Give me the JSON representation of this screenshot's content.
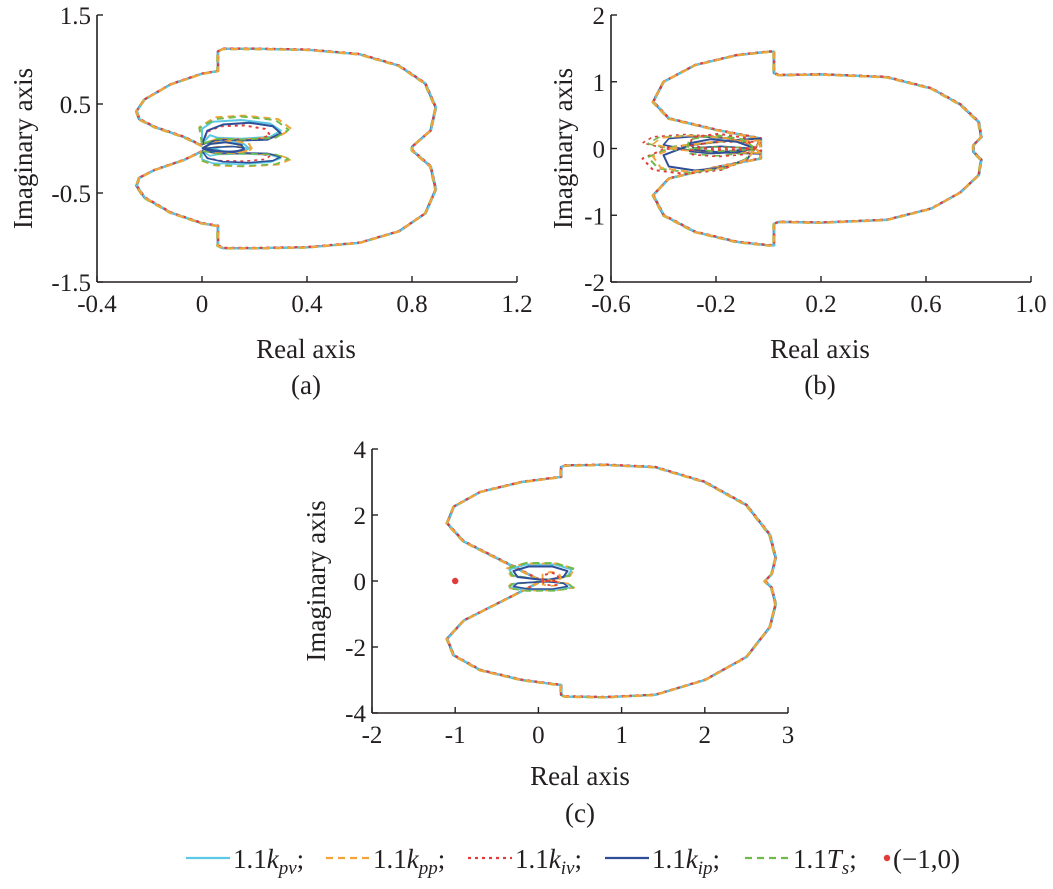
{
  "colors": {
    "kpv": "#5bc8e4",
    "kpp": "#f2a33a",
    "kiv": "#e23b3b",
    "kip": "#2f4e98",
    "Ts": "#6fba4a",
    "point": "#e23b3b",
    "axis": "#231f20"
  },
  "legend": [
    {
      "key": "kpv",
      "prefix": "1.1",
      "symbol": "k",
      "sub": "pv",
      "suffix": ";",
      "style": "solid"
    },
    {
      "key": "kpp",
      "prefix": "1.1",
      "symbol": "k",
      "sub": "pp",
      "suffix": ";",
      "style": "dashed"
    },
    {
      "key": "kiv",
      "prefix": "1.1",
      "symbol": "k",
      "sub": "iv",
      "suffix": ";",
      "style": "dotted"
    },
    {
      "key": "kip",
      "prefix": "1.1",
      "symbol": "k",
      "sub": "ip",
      "suffix": ";",
      "style": "solid"
    },
    {
      "key": "Ts",
      "prefix": "1.1",
      "symbol": "T",
      "sub": "s",
      "suffix": ";",
      "style": "dashed"
    },
    {
      "key": "point",
      "prefix": "",
      "symbol": "",
      "sub": "",
      "suffix": "(−1,0)",
      "style": "marker"
    }
  ],
  "chart_data": [
    {
      "type": "line",
      "panel_label": "(a)",
      "xlabel": "Real axis",
      "ylabel": "Imaginary axis",
      "xlim": [
        -0.4,
        1.2
      ],
      "ylim": [
        -1.5,
        1.5
      ],
      "xticks": [
        "-0.4",
        "0",
        "0.4",
        "0.8",
        "1.2"
      ],
      "yticks": [
        "-1.5",
        "-0.5",
        "0.5",
        "1.5"
      ],
      "xtick_values": [
        -0.4,
        0,
        0.4,
        0.8,
        1.2
      ],
      "ytick_values": [
        -1.5,
        -0.5,
        0.5,
        1.5
      ],
      "outer_curve_upper": [
        [
          0.0,
          0.03
        ],
        [
          -0.07,
          0.13
        ],
        [
          -0.18,
          0.24
        ],
        [
          -0.24,
          0.33
        ],
        [
          -0.25,
          0.42
        ],
        [
          -0.22,
          0.55
        ],
        [
          -0.12,
          0.72
        ],
        [
          0.0,
          0.84
        ],
        [
          0.06,
          0.87
        ],
        [
          0.06,
          1.09
        ],
        [
          0.08,
          1.12
        ],
        [
          0.2,
          1.12
        ],
        [
          0.4,
          1.11
        ],
        [
          0.6,
          1.06
        ],
        [
          0.75,
          0.93
        ],
        [
          0.85,
          0.73
        ],
        [
          0.89,
          0.46
        ],
        [
          0.87,
          0.2
        ],
        [
          0.8,
          0.02
        ]
      ],
      "inner_loops": [
        {
          "series": "kpv",
          "points": [
            [
              0.0,
              0.05
            ],
            [
              0.0,
              0.22
            ],
            [
              0.04,
              0.3
            ],
            [
              0.15,
              0.32
            ],
            [
              0.26,
              0.28
            ],
            [
              0.3,
              0.2
            ],
            [
              0.26,
              0.13
            ],
            [
              0.15,
              0.11
            ],
            [
              0.06,
              0.12
            ],
            [
              0.03,
              0.15
            ]
          ]
        },
        {
          "series": "kpp",
          "points": [
            [
              0.0,
              0.05
            ],
            [
              -0.01,
              0.24
            ],
            [
              0.05,
              0.35
            ],
            [
              0.16,
              0.37
            ],
            [
              0.29,
              0.33
            ],
            [
              0.34,
              0.22
            ],
            [
              0.29,
              0.13
            ],
            [
              0.16,
              0.1
            ],
            [
              0.06,
              0.11
            ]
          ]
        },
        {
          "series": "kiv",
          "points": [
            [
              0.0,
              0.05
            ],
            [
              0.02,
              0.19
            ],
            [
              0.07,
              0.25
            ],
            [
              0.16,
              0.26
            ],
            [
              0.24,
              0.22
            ],
            [
              0.26,
              0.15
            ],
            [
              0.21,
              0.1
            ],
            [
              0.12,
              0.1
            ]
          ]
        },
        {
          "series": "kip",
          "points": [
            [
              0.0,
              0.05
            ],
            [
              0.02,
              0.2
            ],
            [
              0.08,
              0.27
            ],
            [
              0.18,
              0.29
            ],
            [
              0.27,
              0.25
            ],
            [
              0.3,
              0.17
            ],
            [
              0.25,
              0.1
            ],
            [
              0.15,
              0.09
            ],
            [
              0.07,
              0.1
            ]
          ]
        },
        {
          "series": "Ts",
          "points": [
            [
              0.0,
              0.05
            ],
            [
              -0.01,
              0.23
            ],
            [
              0.05,
              0.33
            ],
            [
              0.15,
              0.36
            ],
            [
              0.28,
              0.32
            ],
            [
              0.33,
              0.21
            ],
            [
              0.28,
              0.12
            ],
            [
              0.15,
              0.1
            ],
            [
              0.06,
              0.11
            ]
          ]
        },
        {
          "series": "kpv",
          "points": [
            [
              0.0,
              0.0
            ],
            [
              0.04,
              0.06
            ],
            [
              0.1,
              0.08
            ],
            [
              0.16,
              0.05
            ],
            [
              0.18,
              0.0
            ],
            [
              0.14,
              -0.04
            ],
            [
              0.08,
              -0.03
            ],
            [
              0.04,
              0.0
            ]
          ]
        },
        {
          "series": "kpp",
          "points": [
            [
              0.0,
              0.0
            ],
            [
              0.05,
              0.07
            ],
            [
              0.12,
              0.09
            ],
            [
              0.18,
              0.05
            ],
            [
              0.19,
              -0.01
            ],
            [
              0.14,
              -0.05
            ],
            [
              0.07,
              -0.04
            ]
          ]
        },
        {
          "series": "kip",
          "points": [
            [
              0.0,
              0.0
            ],
            [
              0.03,
              0.05
            ],
            [
              0.09,
              0.07
            ],
            [
              0.15,
              0.04
            ],
            [
              0.16,
              -0.01
            ],
            [
              0.12,
              -0.04
            ],
            [
              0.07,
              -0.03
            ]
          ]
        }
      ]
    },
    {
      "type": "line",
      "panel_label": "(b)",
      "xlabel": "Real axis",
      "ylabel": "Imaginary axis",
      "xlim": [
        -0.6,
        1.0
      ],
      "ylim": [
        -2,
        2
      ],
      "xticks": [
        "-0.6",
        "-0.2",
        "0.2",
        "0.6",
        "1.0"
      ],
      "yticks": [
        "-2",
        "-1",
        "0",
        "1",
        "2"
      ],
      "xtick_values": [
        -0.6,
        -0.2,
        0.2,
        0.6,
        1.0
      ],
      "ytick_values": [
        -2,
        -1,
        0,
        1,
        2
      ],
      "outer_curve_upper": [
        [
          -0.03,
          0.02
        ],
        [
          -0.03,
          0.15
        ],
        [
          -0.2,
          0.28
        ],
        [
          -0.38,
          0.45
        ],
        [
          -0.44,
          0.7
        ],
        [
          -0.4,
          1.0
        ],
        [
          -0.28,
          1.25
        ],
        [
          -0.12,
          1.4
        ],
        [
          0.0,
          1.45
        ],
        [
          0.02,
          1.45
        ],
        [
          0.02,
          1.13
        ],
        [
          0.04,
          1.1
        ],
        [
          0.2,
          1.11
        ],
        [
          0.45,
          1.07
        ],
        [
          0.62,
          0.9
        ],
        [
          0.73,
          0.66
        ],
        [
          0.8,
          0.4
        ],
        [
          0.81,
          0.17
        ],
        [
          0.78,
          0.05
        ]
      ],
      "inner_loops": [
        {
          "series": "kip",
          "points": [
            [
              -0.03,
              0.15
            ],
            [
              -0.15,
              0.12
            ],
            [
              -0.3,
              0.05
            ],
            [
              -0.4,
              -0.1
            ],
            [
              -0.38,
              -0.27
            ],
            [
              -0.28,
              -0.33
            ],
            [
              -0.16,
              -0.28
            ],
            [
              -0.08,
              -0.15
            ],
            [
              -0.05,
              0.0
            ]
          ]
        },
        {
          "series": "kiv",
          "points": [
            [
              -0.03,
              0.1
            ],
            [
              -0.18,
              0.1
            ],
            [
              -0.38,
              0.02
            ],
            [
              -0.48,
              -0.15
            ],
            [
              -0.44,
              -0.32
            ],
            [
              -0.32,
              -0.38
            ],
            [
              -0.18,
              -0.32
            ],
            [
              -0.09,
              -0.18
            ],
            [
              -0.05,
              0.0
            ]
          ]
        },
        {
          "series": "Ts",
          "points": [
            [
              -0.03,
              0.12
            ],
            [
              -0.17,
              0.11
            ],
            [
              -0.36,
              0.03
            ],
            [
              -0.46,
              -0.13
            ],
            [
              -0.42,
              -0.3
            ],
            [
              -0.3,
              -0.36
            ],
            [
              -0.17,
              -0.3
            ],
            [
              -0.09,
              -0.17
            ],
            [
              -0.05,
              0.0
            ]
          ]
        },
        {
          "series": "kpp",
          "points": [
            [
              -0.03,
              0.12
            ],
            [
              -0.16,
              0.12
            ],
            [
              -0.34,
              0.04
            ],
            [
              -0.44,
              -0.12
            ],
            [
              -0.41,
              -0.29
            ],
            [
              -0.3,
              -0.35
            ],
            [
              -0.17,
              -0.29
            ],
            [
              -0.08,
              -0.16
            ],
            [
              -0.05,
              0.0
            ]
          ]
        },
        {
          "series": "kip",
          "points": [
            [
              -0.05,
              0.0
            ],
            [
              -0.12,
              0.1
            ],
            [
              -0.22,
              0.14
            ],
            [
              -0.3,
              0.08
            ],
            [
              -0.28,
              -0.02
            ],
            [
              -0.18,
              -0.06
            ],
            [
              -0.1,
              -0.02
            ]
          ]
        },
        {
          "series": "Ts",
          "points": [
            [
              -0.05,
              0.0
            ],
            [
              -0.1,
              0.14
            ],
            [
              -0.2,
              0.2
            ],
            [
              -0.3,
              0.14
            ],
            [
              -0.31,
              0.03
            ],
            [
              -0.22,
              -0.04
            ],
            [
              -0.12,
              -0.03
            ]
          ]
        },
        {
          "series": "kiv",
          "points": [
            [
              -0.05,
              0.0
            ],
            [
              -0.09,
              0.16
            ],
            [
              -0.19,
              0.22
            ],
            [
              -0.29,
              0.17
            ],
            [
              -0.3,
              0.05
            ],
            [
              -0.21,
              -0.02
            ],
            [
              -0.11,
              -0.02
            ]
          ]
        }
      ]
    },
    {
      "type": "line",
      "panel_label": "(c)",
      "xlabel": "Real axis",
      "ylabel": "Imaginary axis",
      "xlim": [
        -2,
        3
      ],
      "ylim": [
        -4,
        4
      ],
      "xticks": [
        "-2",
        "-1",
        "0",
        "1",
        "2",
        "3"
      ],
      "yticks": [
        "-4",
        "-2",
        "0",
        "2",
        "4"
      ],
      "xtick_values": [
        -2,
        -1,
        0,
        1,
        2,
        3
      ],
      "ytick_values": [
        -4,
        -2,
        0,
        2,
        4
      ],
      "point": {
        "label": "(−1,0)",
        "x": -1,
        "y": 0
      },
      "outer_curve_upper": [
        [
          0.0,
          0.05
        ],
        [
          -0.35,
          0.5
        ],
        [
          -0.9,
          1.2
        ],
        [
          -1.1,
          1.75
        ],
        [
          -1.02,
          2.25
        ],
        [
          -0.7,
          2.7
        ],
        [
          -0.2,
          3.0
        ],
        [
          0.2,
          3.13
        ],
        [
          0.27,
          3.15
        ],
        [
          0.27,
          3.45
        ],
        [
          0.32,
          3.5
        ],
        [
          0.8,
          3.52
        ],
        [
          1.4,
          3.45
        ],
        [
          2.0,
          3.0
        ],
        [
          2.5,
          2.3
        ],
        [
          2.78,
          1.4
        ],
        [
          2.85,
          0.7
        ],
        [
          2.8,
          0.2
        ],
        [
          2.72,
          0.0
        ]
      ],
      "inner_loops": [
        {
          "series": "kpv",
          "points": [
            [
              0.0,
              0.05
            ],
            [
              -0.3,
              0.15
            ],
            [
              -0.35,
              0.35
            ],
            [
              -0.15,
              0.5
            ],
            [
              0.2,
              0.5
            ],
            [
              0.4,
              0.35
            ],
            [
              0.35,
              0.15
            ],
            [
              0.15,
              0.05
            ],
            [
              0.05,
              0.0
            ]
          ]
        },
        {
          "series": "kpp",
          "points": [
            [
              0.0,
              0.05
            ],
            [
              -0.33,
              0.16
            ],
            [
              -0.38,
              0.38
            ],
            [
              -0.17,
              0.53
            ],
            [
              0.22,
              0.53
            ],
            [
              0.43,
              0.37
            ],
            [
              0.38,
              0.15
            ],
            [
              0.17,
              0.04
            ],
            [
              0.05,
              0.0
            ]
          ]
        },
        {
          "series": "Ts",
          "points": [
            [
              0.0,
              0.05
            ],
            [
              -0.32,
              0.17
            ],
            [
              -0.36,
              0.4
            ],
            [
              -0.14,
              0.55
            ],
            [
              0.2,
              0.54
            ],
            [
              0.42,
              0.38
            ],
            [
              0.37,
              0.16
            ],
            [
              0.16,
              0.05
            ]
          ]
        },
        {
          "series": "kip",
          "points": [
            [
              0.0,
              0.05
            ],
            [
              -0.25,
              0.12
            ],
            [
              -0.3,
              0.3
            ],
            [
              -0.12,
              0.44
            ],
            [
              0.17,
              0.44
            ],
            [
              0.35,
              0.3
            ],
            [
              0.3,
              0.12
            ],
            [
              0.12,
              0.04
            ]
          ]
        },
        {
          "series": "kpp",
          "points": [
            [
              0.05,
              0.0
            ],
            [
              0.05,
              0.2
            ],
            [
              0.15,
              0.28
            ],
            [
              0.25,
              0.22
            ],
            [
              0.27,
              0.08
            ],
            [
              0.2,
              0.0
            ],
            [
              0.12,
              0.02
            ]
          ]
        },
        {
          "series": "kiv",
          "points": [
            [
              0.05,
              0.0
            ],
            [
              0.07,
              0.18
            ],
            [
              0.16,
              0.25
            ],
            [
              0.23,
              0.2
            ],
            [
              0.24,
              0.07
            ],
            [
              0.18,
              0.0
            ]
          ]
        }
      ]
    }
  ]
}
